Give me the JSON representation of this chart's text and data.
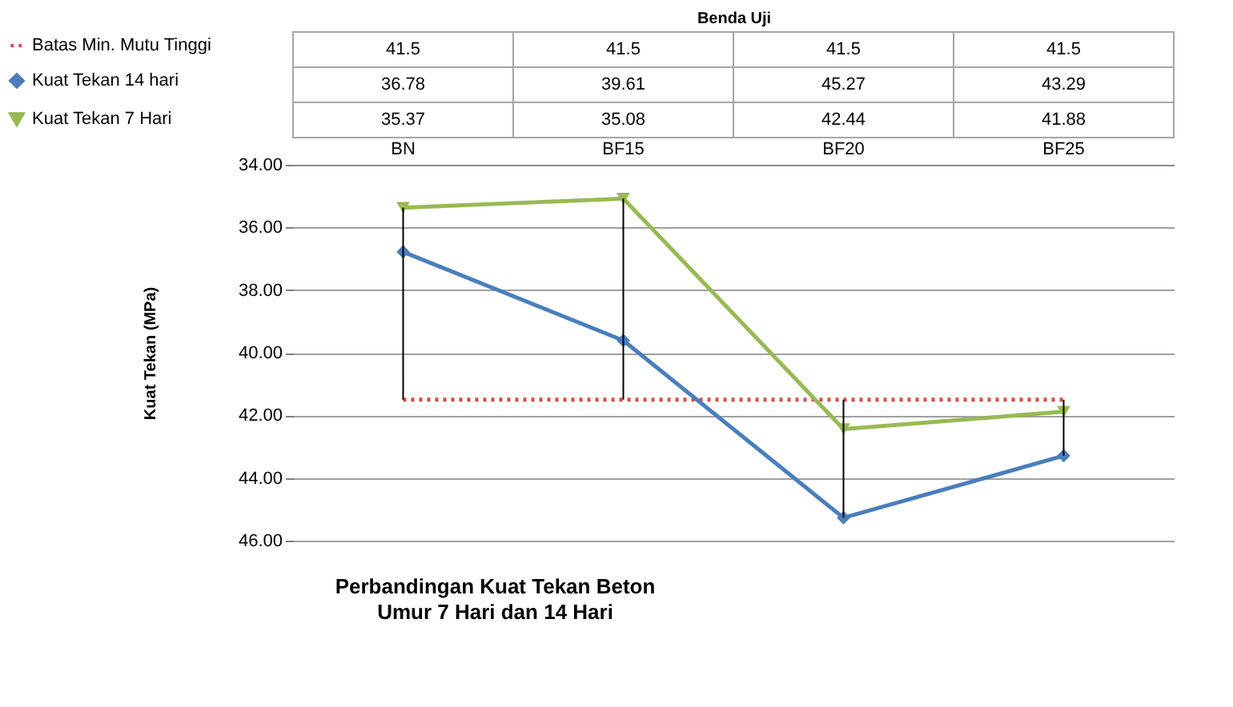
{
  "chart_data": {
    "type": "line",
    "title": "Perbandingan Kuat Tekan Beton",
    "subtitle": "Umur 7 Hari dan 14 Hari",
    "ylabel": "Kuat Tekan (MPa)",
    "annotations": [
      "Benda Uji"
    ],
    "categories": [
      "BN",
      "BF15",
      "BF20",
      "BF25"
    ],
    "series": [
      {
        "name": "Batas Min. Mutu Tinggi",
        "color": "#d05050",
        "marker": "none",
        "line_style": "dotted",
        "values": [
          41.5,
          41.5,
          41.5,
          41.5
        ],
        "errors": [
          [
            35.37,
            41.5
          ],
          [
            35.08,
            41.5
          ],
          [
            41.5,
            45.27
          ],
          [
            41.5,
            43.29
          ]
        ]
      },
      {
        "name": "Kuat Tekan 14 hari",
        "color": "#4a7ebb",
        "marker": "diamond",
        "values": [
          36.78,
          39.61,
          45.27,
          43.29
        ]
      },
      {
        "name": "Kuat Tekan 7 Hari",
        "color": "#98b954",
        "marker": "triangle",
        "values": [
          35.37,
          35.08,
          42.44,
          41.88
        ]
      }
    ],
    "ylim": [
      46,
      34
    ],
    "yticks": [
      {
        "value": 34,
        "label": "34.00"
      },
      {
        "value": 36,
        "label": "36.00"
      },
      {
        "value": 38,
        "label": "38.00"
      },
      {
        "value": 40,
        "label": "40.00"
      },
      {
        "value": 42,
        "label": "42.00"
      },
      {
        "value": 44,
        "label": "44.00"
      },
      {
        "value": 46,
        "label": "46.00"
      }
    ],
    "grid": "y",
    "legend": "top left",
    "line_style": "solid",
    "data_labels": true
  }
}
